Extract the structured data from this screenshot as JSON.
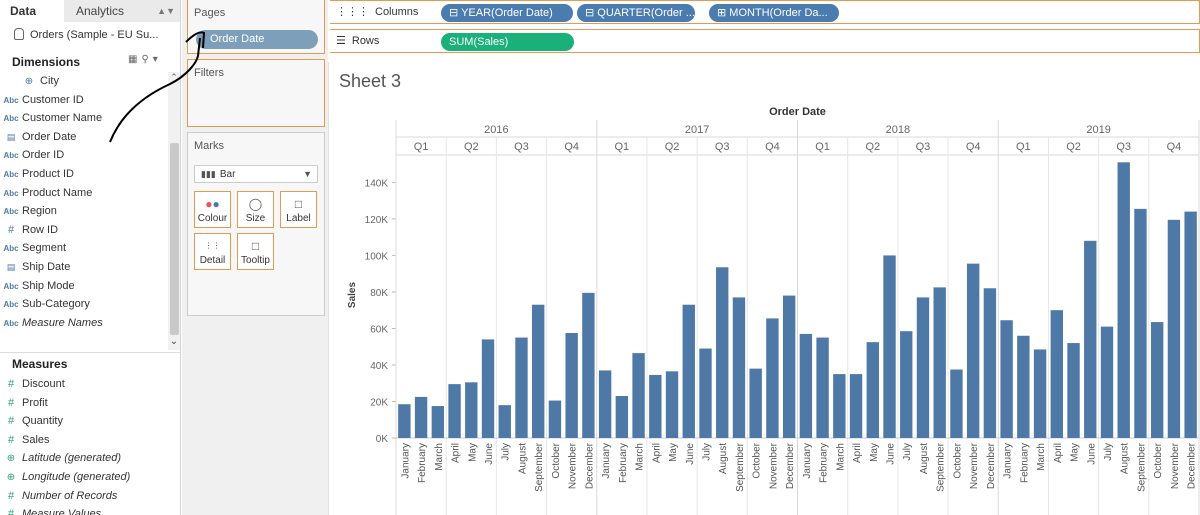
{
  "data_pane": {
    "tabs": {
      "data": "Data",
      "analytics": "Analytics"
    },
    "datasource": "Orders (Sample - EU Su...",
    "dimensions_title": "Dimensions",
    "measures_title": "Measures",
    "dimensions": [
      {
        "label": "City",
        "icon": "globe-icon",
        "indent": true
      },
      {
        "label": "Customer ID",
        "icon": "abc-icon"
      },
      {
        "label": "Customer Name",
        "icon": "abc-icon"
      },
      {
        "label": "Order Date",
        "icon": "calendar-icon"
      },
      {
        "label": "Order ID",
        "icon": "abc-icon"
      },
      {
        "label": "Product ID",
        "icon": "abc-icon"
      },
      {
        "label": "Product Name",
        "icon": "abc-icon"
      },
      {
        "label": "Region",
        "icon": "abc-icon"
      },
      {
        "label": "Row ID",
        "icon": "hash-icon"
      },
      {
        "label": "Segment",
        "icon": "abc-icon"
      },
      {
        "label": "Ship Date",
        "icon": "calendar-icon"
      },
      {
        "label": "Ship Mode",
        "icon": "abc-icon"
      },
      {
        "label": "Sub-Category",
        "icon": "abc-icon"
      },
      {
        "label": "Measure Names",
        "icon": "abc-icon",
        "italic": true
      }
    ],
    "measures": [
      {
        "label": "Discount",
        "icon": "hash-icon"
      },
      {
        "label": "Profit",
        "icon": "hash-icon"
      },
      {
        "label": "Quantity",
        "icon": "hash-icon"
      },
      {
        "label": "Sales",
        "icon": "hash-icon"
      },
      {
        "label": "Latitude (generated)",
        "icon": "globe-icon",
        "italic": true
      },
      {
        "label": "Longitude (generated)",
        "icon": "globe-icon",
        "italic": true
      },
      {
        "label": "Number of Records",
        "icon": "hash-icon",
        "italic": true
      },
      {
        "label": "Measure Values",
        "icon": "hash-icon",
        "italic": true
      }
    ]
  },
  "cards": {
    "pages_title": "Pages",
    "pages_pill": "Order Date",
    "filters_title": "Filters",
    "marks_title": "Marks",
    "mark_type": "Bar",
    "buttons": {
      "colour": "Colour",
      "size": "Size",
      "label": "Label",
      "detail": "Detail",
      "tooltip": "Tooltip"
    }
  },
  "shelves": {
    "columns_label": "Columns",
    "rows_label": "Rows",
    "column_pills": [
      "YEAR(Order Date)",
      "QUARTER(Order ...",
      "MONTH(Order Da..."
    ],
    "row_pills": [
      "SUM(Sales)"
    ]
  },
  "sheet": {
    "title": "Sheet 3"
  },
  "colors": {
    "bar": "#4e79a7",
    "orange": "#e59a52",
    "blue_pill": "#4a7cb0",
    "green_pill": "#1ab07a"
  },
  "chart_data": {
    "type": "bar",
    "title": "Order Date",
    "ylabel": "Sales",
    "ylim": [
      0,
      155000
    ],
    "yticks": [
      "0K",
      "20K",
      "40K",
      "60K",
      "80K",
      "100K",
      "120K",
      "140K"
    ],
    "ytick_values": [
      0,
      20000,
      40000,
      60000,
      80000,
      100000,
      120000,
      140000
    ],
    "years": [
      "2016",
      "2017",
      "2018",
      "2019"
    ],
    "quarters": [
      "Q1",
      "Q2",
      "Q3",
      "Q4"
    ],
    "months": [
      "January",
      "February",
      "March",
      "April",
      "May",
      "June",
      "July",
      "August",
      "September",
      "October",
      "November",
      "December"
    ],
    "series": [
      {
        "name": "2016",
        "values": [
          18500,
          22500,
          17500,
          29500,
          30500,
          54000,
          18000,
          55000,
          73000,
          20500,
          57500,
          79500
        ]
      },
      {
        "name": "2017",
        "values": [
          37000,
          23000,
          46500,
          34500,
          36500,
          73000,
          49000,
          93500,
          77000,
          38000,
          65500,
          78000
        ]
      },
      {
        "name": "2018",
        "values": [
          57000,
          55000,
          35000,
          35000,
          52500,
          100000,
          58500,
          77000,
          82500,
          37500,
          95500,
          82000
        ]
      },
      {
        "name": "2019",
        "values": [
          64500,
          56000,
          48500,
          70000,
          52000,
          108000,
          61000,
          151000,
          125500,
          63500,
          119500,
          124000
        ]
      }
    ]
  }
}
